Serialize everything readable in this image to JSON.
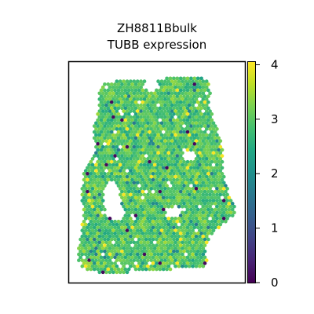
{
  "chart_data": {
    "type": "scatter",
    "title": [
      "ZH8811Bbulk",
      "TUBB expression"
    ],
    "xlabel": "",
    "ylabel": "",
    "grid": false,
    "colormap": "viridis",
    "colorbar": {
      "position": "right",
      "min": 0,
      "max": 4.05,
      "ticks": [
        0,
        1,
        2,
        3,
        4
      ],
      "tick_labels": [
        "0",
        "1",
        "2",
        "3",
        "4"
      ]
    },
    "point_summary": {
      "typical_range": [
        2.3,
        3.6
      ],
      "sparse_low_values": 0.1,
      "sparse_high_values": 4.0
    }
  }
}
